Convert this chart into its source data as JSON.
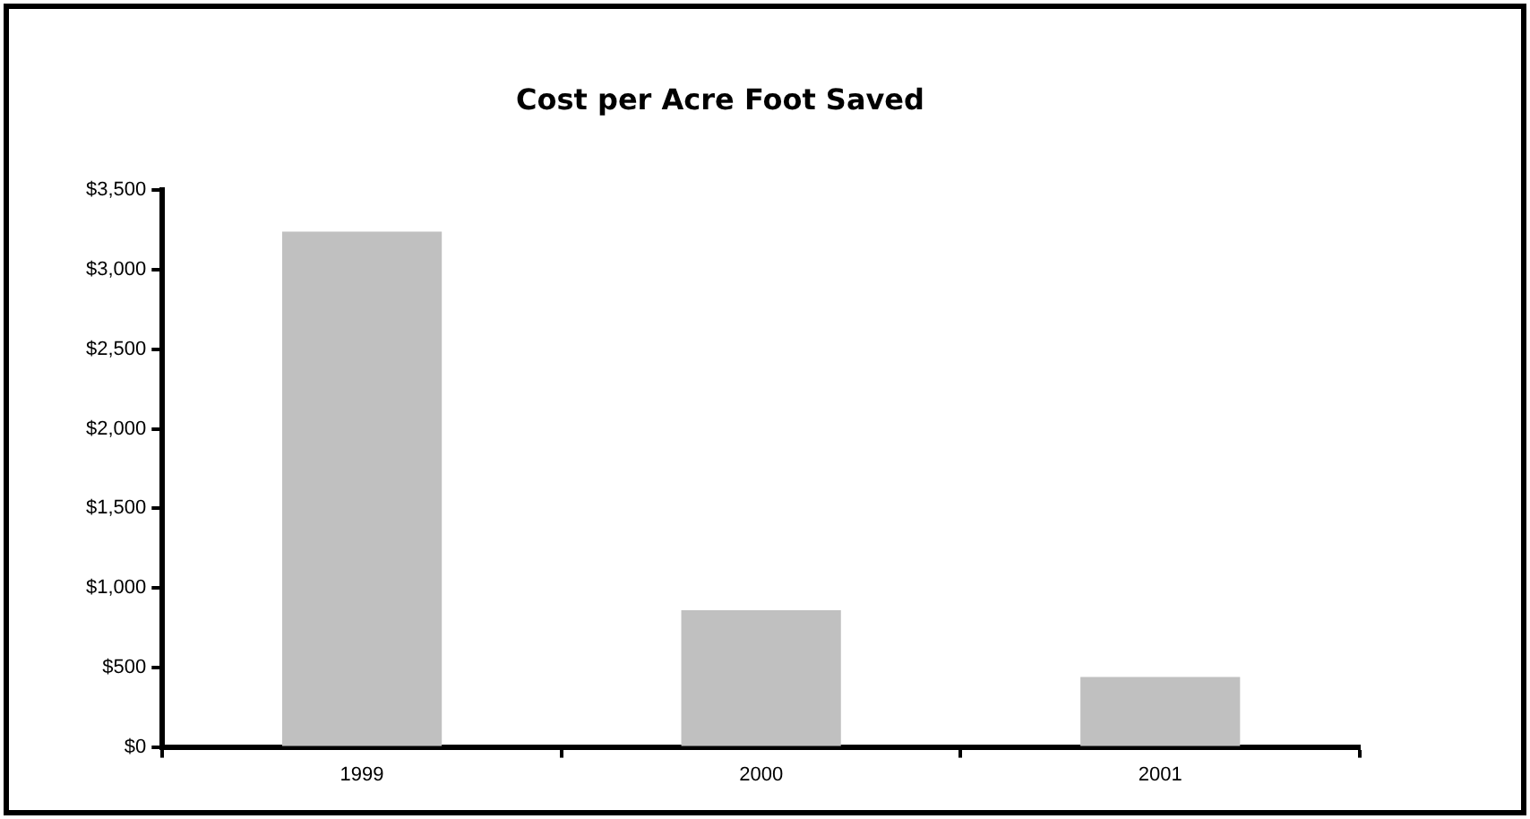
{
  "chart_data": {
    "type": "bar",
    "title": "Cost per Acre Foot Saved",
    "categories": [
      "1999",
      "2000",
      "2001"
    ],
    "values": [
      3240,
      860,
      440
    ],
    "color": "#c0c0c0",
    "ylim": [
      0,
      3500
    ],
    "yticks": [
      {
        "value": 0,
        "label": "$0"
      },
      {
        "value": 500,
        "label": "$500"
      },
      {
        "value": 1000,
        "label": "$1,000"
      },
      {
        "value": 1500,
        "label": "$1,500"
      },
      {
        "value": 2000,
        "label": "$2,000"
      },
      {
        "value": 2500,
        "label": "$2,500"
      },
      {
        "value": 3000,
        "label": "$3,000"
      },
      {
        "value": 3500,
        "label": "$3,500"
      }
    ],
    "grid": false,
    "legend": false
  }
}
